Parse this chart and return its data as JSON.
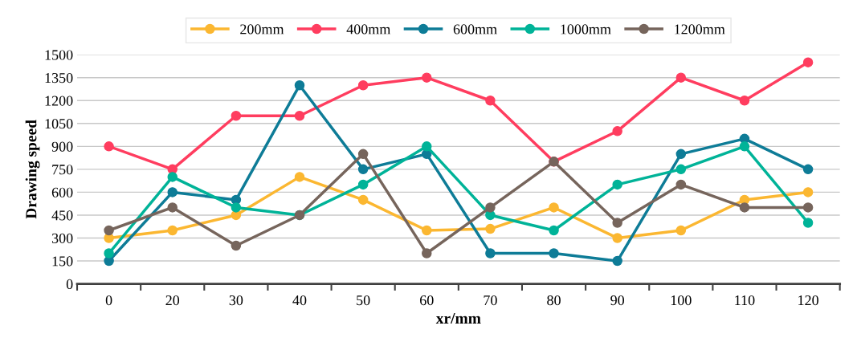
{
  "chart_data": {
    "type": "line",
    "xlabel": "xr/mm",
    "ylabel": "Drawing speed",
    "categories": [
      "0",
      "20",
      "30",
      "40",
      "50",
      "60",
      "70",
      "80",
      "90",
      "100",
      "110",
      "120"
    ],
    "series": [
      {
        "name": "200mm",
        "color": "#fbb731",
        "values": [
          300,
          350,
          450,
          700,
          550,
          350,
          360,
          500,
          300,
          350,
          550,
          600
        ]
      },
      {
        "name": "400mm",
        "color": "#ff3d5f",
        "values": [
          900,
          750,
          1100,
          1100,
          1300,
          1350,
          1200,
          800,
          1000,
          1350,
          1200,
          1450
        ]
      },
      {
        "name": "600mm",
        "color": "#0e7c97",
        "values": [
          150,
          600,
          550,
          1300,
          750,
          850,
          200,
          200,
          150,
          850,
          950,
          750
        ]
      },
      {
        "name": "1000mm",
        "color": "#00b398",
        "values": [
          200,
          700,
          500,
          450,
          650,
          900,
          450,
          350,
          650,
          750,
          900,
          400
        ]
      },
      {
        "name": "1200mm",
        "color": "#76655c",
        "values": [
          350,
          500,
          250,
          450,
          850,
          200,
          500,
          800,
          400,
          650,
          500,
          500
        ]
      }
    ],
    "ylim": [
      0,
      1500
    ],
    "yticks": [
      0,
      150,
      300,
      450,
      600,
      750,
      900,
      1050,
      1200,
      1350,
      1500
    ],
    "grid": "y",
    "legend": "top",
    "marker": "circle",
    "line_style": "solid"
  }
}
